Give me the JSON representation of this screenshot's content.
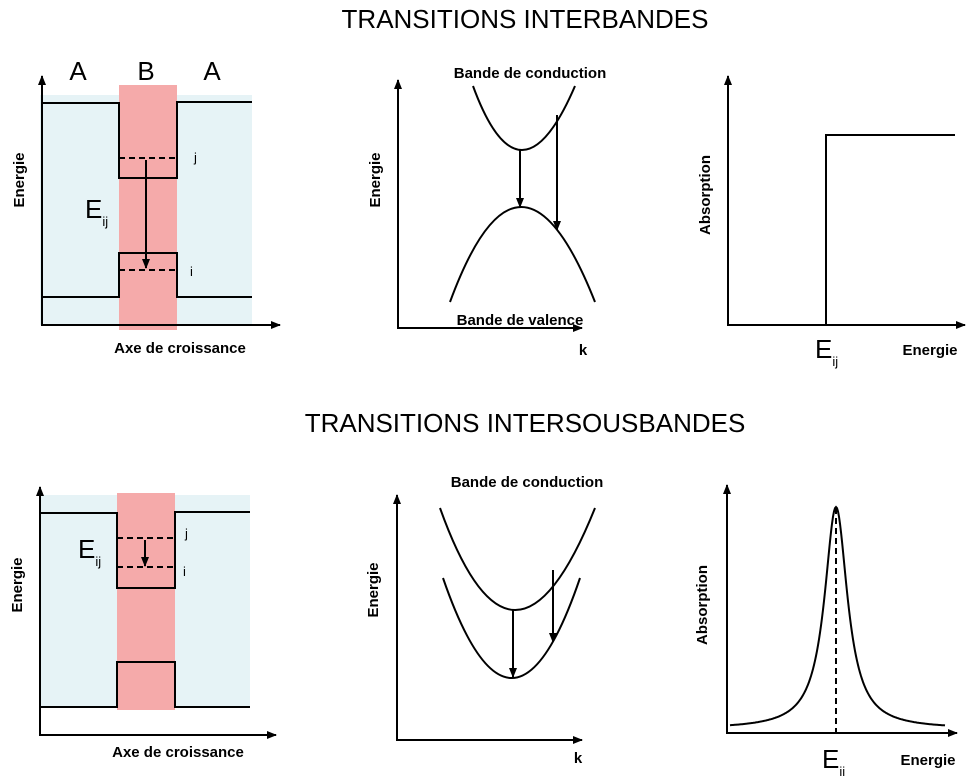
{
  "sections": [
    {
      "title": "TRANSITIONS INTERBANDES",
      "well": {
        "regions": [
          "A",
          "B",
          "A"
        ],
        "y_label": "Energie",
        "x_label": "Axe de croissance",
        "transition": {
          "main": "E",
          "sub": "ij"
        },
        "levels": [
          "j",
          "i"
        ]
      },
      "dispersion": {
        "upper": "Bande de conduction",
        "lower": "Bande de valence",
        "y_label": "Energie",
        "x_label": "k"
      },
      "absorption": {
        "y_label": "Absorption",
        "x_label": "Energie",
        "marker": {
          "main": "E",
          "sub": "ij"
        }
      }
    },
    {
      "title": "TRANSITIONS INTERSOUSBANDES",
      "well": {
        "y_label": "Energie",
        "x_label": "Axe de croissance",
        "transition": {
          "main": "E",
          "sub": "ij"
        },
        "levels": [
          "j",
          "i"
        ]
      },
      "dispersion": {
        "upper": "Bande de conduction",
        "y_label": "Energie",
        "x_label": "k"
      },
      "absorption": {
        "y_label": "Absorption",
        "x_label": "Energie",
        "marker": {
          "main": "E",
          "sub": "ij"
        }
      }
    }
  ]
}
